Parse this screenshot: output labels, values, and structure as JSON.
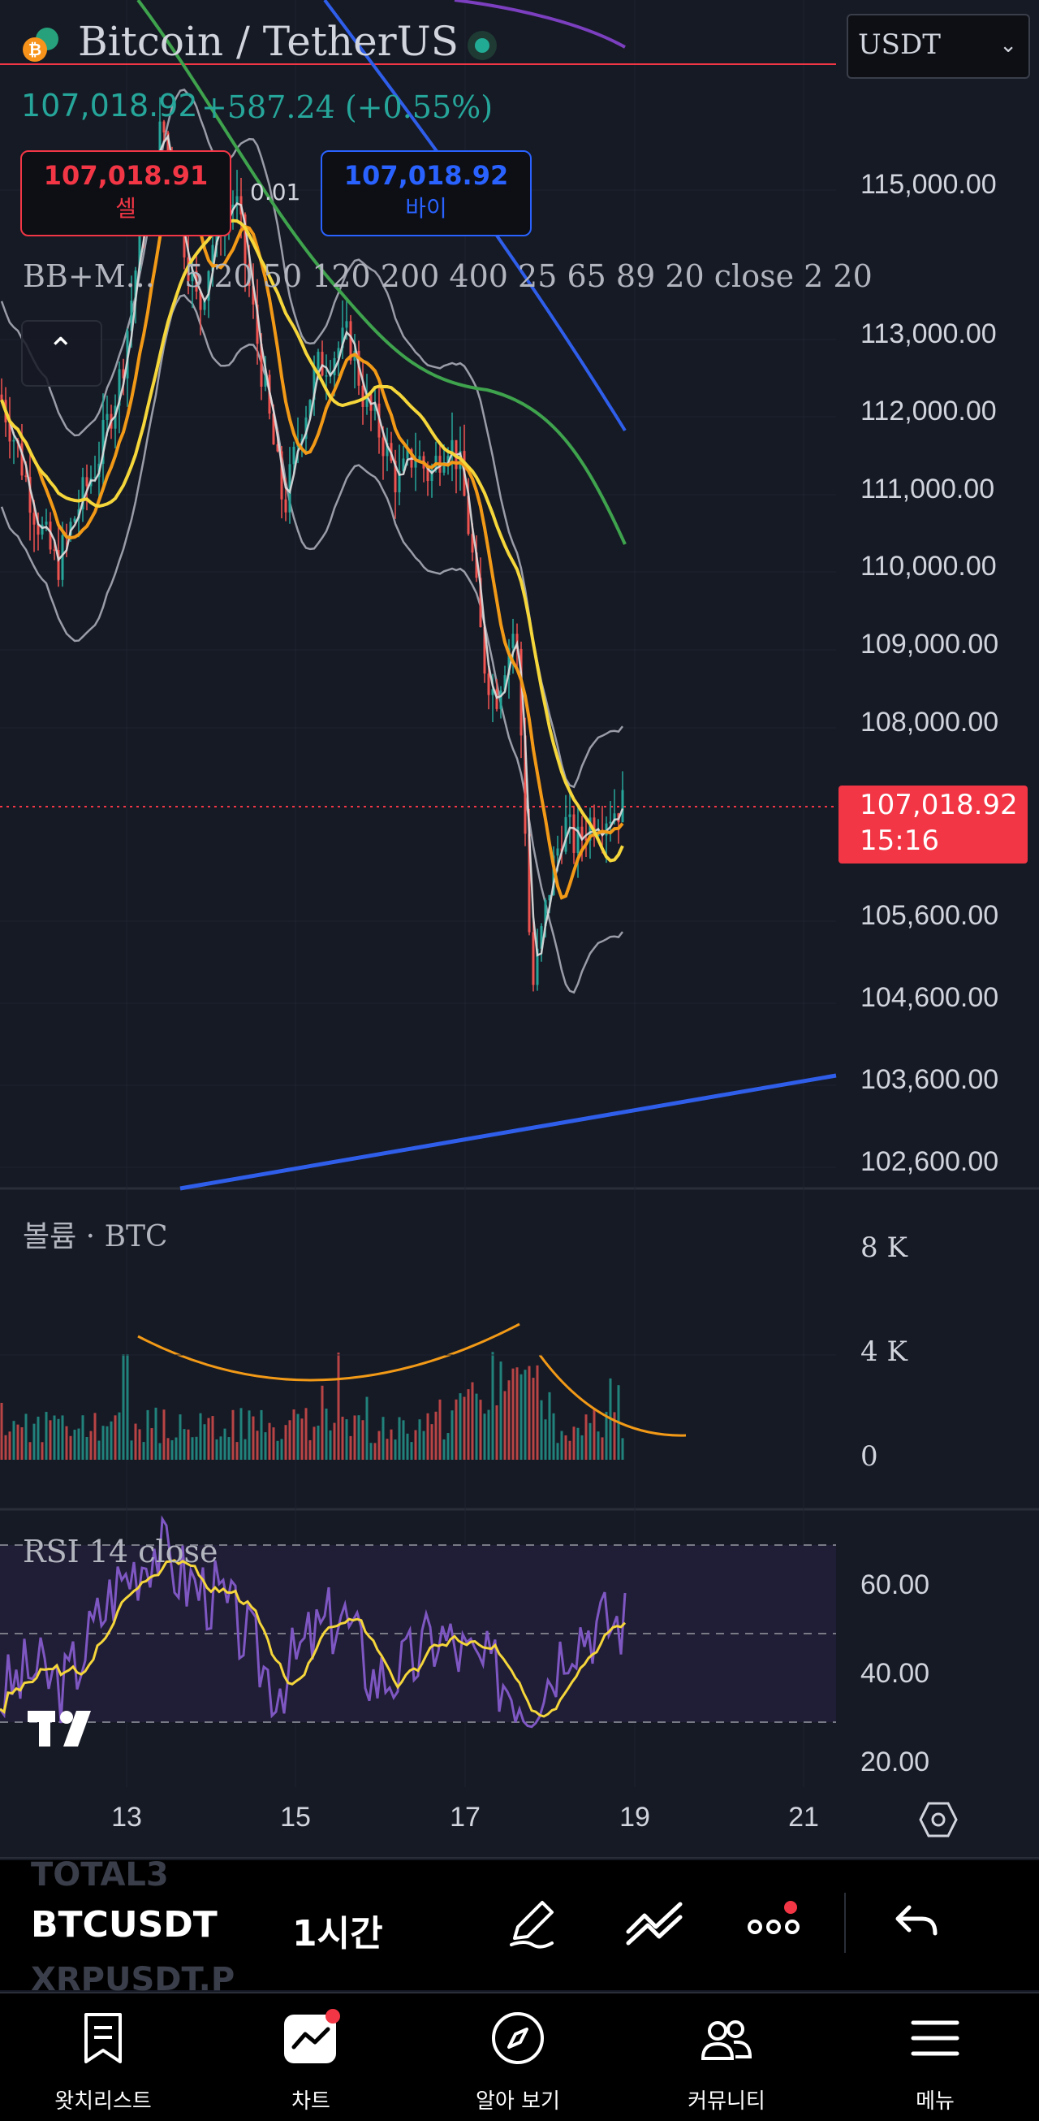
{
  "header": {
    "pair_title": "Bitcoin / TetherUS",
    "last_price": "107,018.92",
    "change": "+587.24 (+0.55%)",
    "currency_select": "USDT",
    "sell_price": "107,018.91",
    "sell_label": "셀",
    "spread": "0.01",
    "buy_price": "107,018.92",
    "buy_label": "바이",
    "indicators_text": "BB+M...   5 20 50 120 200 400 25 65 89 20 close 2 20"
  },
  "price_axis": [
    "115,000.00",
    "113,000.00",
    "112,000.00",
    "111,000.00",
    "110,000.00",
    "109,000.00",
    "108,000.00",
    "105,600.00",
    "104,600.00",
    "103,600.00",
    "102,600.00"
  ],
  "current_price_tag": {
    "price": "107,018.92",
    "countdown": "15:16"
  },
  "volume_pane": {
    "title": "볼륨 · BTC",
    "axis": [
      "8 K",
      "4 K",
      "0"
    ]
  },
  "rsi_pane": {
    "title": "RSI 14 close",
    "axis": [
      "60.00",
      "40.00",
      "20.00"
    ]
  },
  "date_axis": [
    "13",
    "15",
    "17",
    "19",
    "21"
  ],
  "symbol_bar": {
    "prev_symbol": "TOTAL3",
    "symbol": "BTCUSDT",
    "next_symbol": "XRPUSDT.P",
    "interval": "1시간"
  },
  "toolbar_icons": [
    "pencil-icon",
    "trendline-icon",
    "more-icon",
    "undo-icon"
  ],
  "bottom_nav": [
    {
      "label": "왓치리스트",
      "icon": "watchlist-icon"
    },
    {
      "label": "차트",
      "icon": "chart-icon"
    },
    {
      "label": "알아 보기",
      "icon": "compass-icon"
    },
    {
      "label": "커뮤니티",
      "icon": "community-icon"
    },
    {
      "label": "메뉴",
      "icon": "menu-icon"
    }
  ],
  "colors": {
    "background": "#161a25",
    "sell": "#f23645",
    "buy": "#2962ff",
    "up": "#26a69a",
    "down": "#ef5350",
    "ma_yellow": "#f5d63b",
    "ma_orange": "#f29a17",
    "ma_green": "#3fa34d",
    "trend_blue": "#2f5eea",
    "rsi_purple": "#7e57c2",
    "bb_gray": "#b2b5be"
  }
}
